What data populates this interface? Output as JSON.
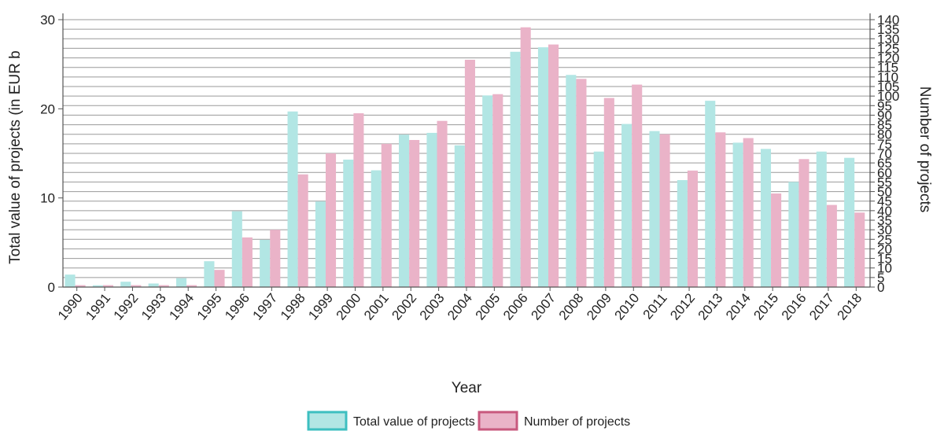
{
  "chart_data": {
    "type": "bar",
    "xlabel": "Year",
    "ylabel": "Total value of projects (in EUR b",
    "y2label": "Number of projects",
    "categories": [
      "1990",
      "1991",
      "1992",
      "1993",
      "1994",
      "1995",
      "1996",
      "1997",
      "1998",
      "1999",
      "2000",
      "2001",
      "2002",
      "2003",
      "2004",
      "2005",
      "2006",
      "2007",
      "2008",
      "2009",
      "2010",
      "2011",
      "2012",
      "2013",
      "2014",
      "2015",
      "2016",
      "2017",
      "2018"
    ],
    "series": [
      {
        "name": "Total value of projects",
        "axis": "left",
        "color": "#b2e6e4",
        "border": "#3dbfc0",
        "values": [
          1.4,
          0.2,
          0.6,
          0.4,
          1.0,
          2.9,
          8.5,
          5.3,
          19.7,
          9.6,
          14.3,
          13.1,
          17.1,
          17.3,
          15.9,
          21.5,
          26.4,
          26.9,
          23.8,
          15.2,
          18.3,
          17.5,
          12.0,
          20.9,
          16.2,
          15.5,
          11.8,
          15.2,
          14.5
        ]
      },
      {
        "name": "Number of projects",
        "axis": "right",
        "color": "#eab3c8",
        "border": "#c8587e",
        "values": [
          1,
          1,
          1,
          1,
          1,
          9,
          26,
          30,
          59,
          70,
          91,
          75,
          77,
          87,
          119,
          101,
          136,
          127,
          109,
          99,
          106,
          80,
          61,
          81,
          78,
          49,
          67,
          43,
          39
        ]
      }
    ],
    "ylim": [
      0,
      30
    ],
    "yticks": [
      0,
      10,
      20,
      30
    ],
    "y2lim": [
      0,
      140
    ],
    "y2ticks": [
      0,
      5,
      10,
      15,
      20,
      25,
      30,
      35,
      40,
      45,
      50,
      55,
      60,
      65,
      70,
      75,
      80,
      85,
      90,
      95,
      100,
      105,
      110,
      115,
      120,
      125,
      130,
      135,
      140
    ],
    "grid": true,
    "legend_position": "bottom"
  }
}
